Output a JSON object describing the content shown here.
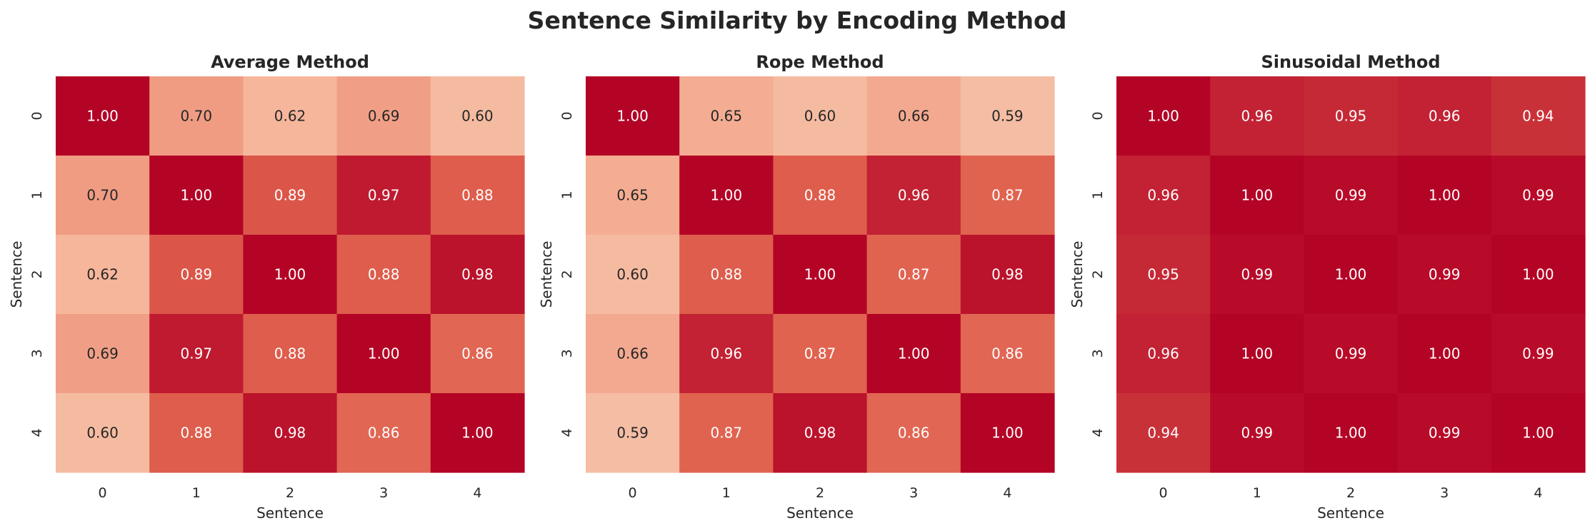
{
  "figure": {
    "title": "Sentence Similarity by Encoding Method"
  },
  "chart_data": [
    {
      "type": "heatmap",
      "title": "Average Method",
      "xlabel": "Sentence",
      "ylabel": "Sentence",
      "x_ticks": [
        "0",
        "1",
        "2",
        "3",
        "4"
      ],
      "y_ticks": [
        "0",
        "1",
        "2",
        "3",
        "4"
      ],
      "colorbar": false,
      "color_range": [
        0.5,
        1.0
      ],
      "matrix": [
        [
          1.0,
          0.7,
          0.62,
          0.69,
          0.6
        ],
        [
          0.7,
          1.0,
          0.89,
          0.97,
          0.88
        ],
        [
          0.62,
          0.89,
          1.0,
          0.88,
          0.98
        ],
        [
          0.69,
          0.97,
          0.88,
          1.0,
          0.86
        ],
        [
          0.6,
          0.88,
          0.98,
          0.86,
          1.0
        ]
      ]
    },
    {
      "type": "heatmap",
      "title": "Rope Method",
      "xlabel": "Sentence",
      "ylabel": "Sentence",
      "x_ticks": [
        "0",
        "1",
        "2",
        "3",
        "4"
      ],
      "y_ticks": [
        "0",
        "1",
        "2",
        "3",
        "4"
      ],
      "colorbar": false,
      "color_range": [
        0.5,
        1.0
      ],
      "matrix": [
        [
          1.0,
          0.65,
          0.6,
          0.66,
          0.59
        ],
        [
          0.65,
          1.0,
          0.88,
          0.96,
          0.87
        ],
        [
          0.6,
          0.88,
          1.0,
          0.87,
          0.98
        ],
        [
          0.66,
          0.96,
          0.87,
          1.0,
          0.86
        ],
        [
          0.59,
          0.87,
          0.98,
          0.86,
          1.0
        ]
      ]
    },
    {
      "type": "heatmap",
      "title": "Sinusoidal Method",
      "xlabel": "Sentence",
      "ylabel": "Sentence",
      "x_ticks": [
        "0",
        "1",
        "2",
        "3",
        "4"
      ],
      "y_ticks": [
        "0",
        "1",
        "2",
        "3",
        "4"
      ],
      "colorbar": false,
      "color_range": [
        0.5,
        1.0
      ],
      "matrix": [
        [
          1.0,
          0.96,
          0.95,
          0.96,
          0.94
        ],
        [
          0.96,
          1.0,
          0.99,
          1.0,
          0.99
        ],
        [
          0.95,
          0.99,
          1.0,
          0.99,
          1.0
        ],
        [
          0.96,
          1.0,
          0.99,
          1.0,
          0.99
        ],
        [
          0.94,
          0.99,
          1.0,
          0.99,
          1.0
        ]
      ]
    }
  ],
  "colors": {
    "low": "#f0d2c0",
    "mid_low": "#f6b599",
    "mid": "#e0614e",
    "high": "#b40426",
    "text_dark": "#262626",
    "text_light": "#ffffff"
  }
}
